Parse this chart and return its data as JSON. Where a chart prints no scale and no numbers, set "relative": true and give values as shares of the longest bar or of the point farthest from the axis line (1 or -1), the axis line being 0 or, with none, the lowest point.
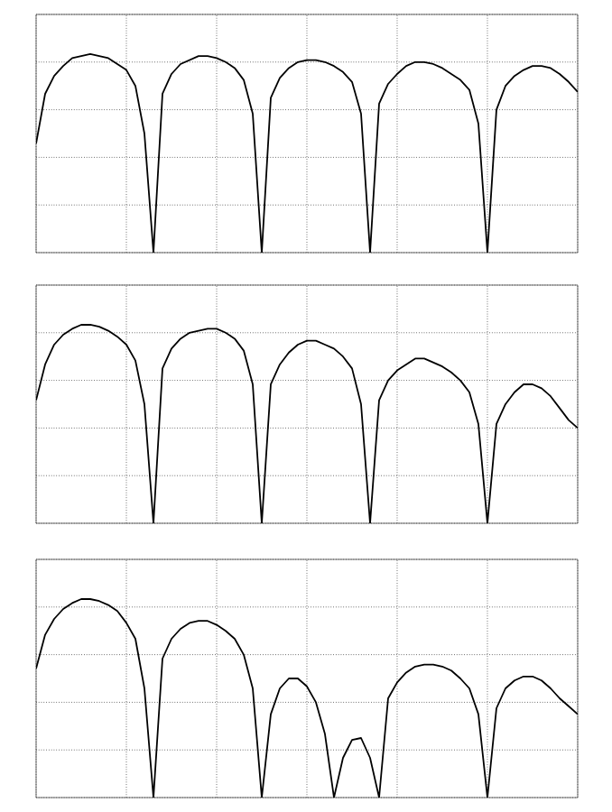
{
  "chart_data": [
    {
      "type": "line",
      "relative": true,
      "grid": true,
      "categories": [
        null,
        null,
        null,
        null,
        null,
        null,
        null,
        null,
        null,
        null,
        null,
        null,
        null,
        null,
        null,
        null,
        null,
        null,
        null,
        null,
        null,
        null,
        null,
        null,
        null,
        null,
        null,
        null,
        null,
        null,
        null,
        null,
        null,
        null,
        null,
        null,
        null,
        null,
        null,
        null,
        null,
        null,
        null,
        null,
        null,
        null,
        null,
        null,
        null,
        null,
        null,
        null,
        null,
        null,
        null,
        null,
        null,
        null,
        null,
        null,
        null
      ],
      "series": [
        {
          "color": "#000000",
          "values": [
            0.55,
            0.8,
            0.89,
            0.94,
            0.98,
            0.99,
            1.0,
            0.99,
            0.98,
            0.95,
            0.92,
            0.84,
            0.6,
            0,
            0.8,
            0.9,
            0.95,
            0.97,
            0.99,
            0.99,
            0.98,
            0.96,
            0.93,
            0.87,
            0.7,
            0,
            0.78,
            0.88,
            0.93,
            0.96,
            0.97,
            0.97,
            0.96,
            0.94,
            0.91,
            0.86,
            0.7,
            0,
            0.75,
            0.85,
            0.9,
            0.94,
            0.96,
            0.96,
            0.95,
            0.93,
            0.9,
            0.87,
            0.82,
            0.65,
            0,
            0.72,
            0.84,
            0.89,
            0.92,
            0.94,
            0.94,
            0.93,
            0.9,
            0.86,
            0.81
          ]
        }
      ]
    },
    {
      "type": "line",
      "relative": true,
      "grid": true,
      "categories": [
        null,
        null,
        null,
        null,
        null,
        null,
        null,
        null,
        null,
        null,
        null,
        null,
        null,
        null,
        null,
        null,
        null,
        null,
        null,
        null,
        null,
        null,
        null,
        null,
        null,
        null,
        null,
        null,
        null,
        null,
        null,
        null,
        null,
        null,
        null,
        null,
        null,
        null,
        null,
        null,
        null,
        null,
        null,
        null,
        null,
        null,
        null,
        null,
        null,
        null,
        null,
        null,
        null,
        null,
        null,
        null,
        null,
        null,
        null,
        null,
        null
      ],
      "series": [
        {
          "color": "#000000",
          "values": [
            0.62,
            0.8,
            0.9,
            0.95,
            0.98,
            1.0,
            1.0,
            0.99,
            0.97,
            0.94,
            0.9,
            0.82,
            0.6,
            0,
            0.78,
            0.88,
            0.93,
            0.96,
            0.97,
            0.98,
            0.98,
            0.96,
            0.93,
            0.87,
            0.7,
            0,
            0.7,
            0.8,
            0.86,
            0.9,
            0.92,
            0.92,
            0.9,
            0.88,
            0.84,
            0.78,
            0.6,
            0,
            0.62,
            0.72,
            0.77,
            0.8,
            0.83,
            0.83,
            0.81,
            0.79,
            0.76,
            0.72,
            0.66,
            0.5,
            0,
            0.5,
            0.6,
            0.66,
            0.7,
            0.7,
            0.68,
            0.64,
            0.58,
            0.52,
            0.48
          ]
        }
      ]
    },
    {
      "type": "line",
      "relative": true,
      "grid": true,
      "categories": [
        null,
        null,
        null,
        null,
        null,
        null,
        null,
        null,
        null,
        null,
        null,
        null,
        null,
        null,
        null,
        null,
        null,
        null,
        null,
        null,
        null,
        null,
        null,
        null,
        null,
        null,
        null,
        null,
        null,
        null,
        null,
        null,
        null,
        null,
        null,
        null,
        null,
        null,
        null,
        null,
        null,
        null,
        null,
        null,
        null,
        null,
        null,
        null,
        null,
        null,
        null,
        null,
        null,
        null,
        null,
        null,
        null,
        null,
        null,
        null,
        null
      ],
      "series": [
        {
          "color": "#000000",
          "values": [
            0.65,
            0.82,
            0.9,
            0.95,
            0.98,
            1.0,
            1.0,
            0.99,
            0.97,
            0.94,
            0.88,
            0.8,
            0.55,
            0,
            0.7,
            0.8,
            0.85,
            0.88,
            0.89,
            0.89,
            0.87,
            0.84,
            0.8,
            0.72,
            0.55,
            0,
            0.42,
            0.55,
            0.6,
            0.6,
            0.56,
            0.48,
            0.32,
            0,
            0.2,
            0.29,
            0.3,
            0.2,
            0,
            0.5,
            0.58,
            0.63,
            0.66,
            0.67,
            0.67,
            0.66,
            0.64,
            0.6,
            0.55,
            0.42,
            0,
            0.45,
            0.55,
            0.59,
            0.61,
            0.61,
            0.59,
            0.55,
            0.5,
            0.46,
            0.42
          ]
        }
      ]
    }
  ]
}
